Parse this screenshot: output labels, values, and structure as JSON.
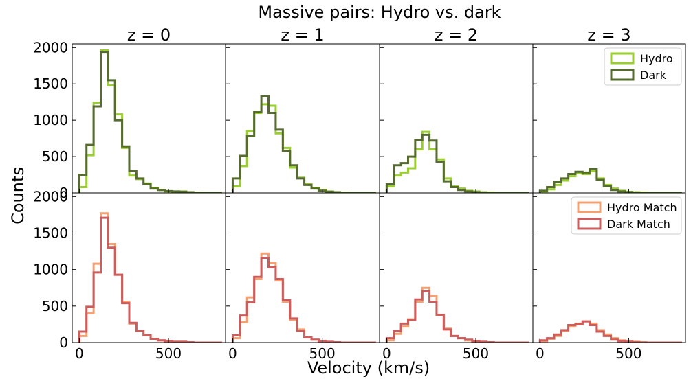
{
  "figure": {
    "suptitle": "Massive pairs: Hydro vs. dark",
    "xlabel": "Velocity (km/s)",
    "ylabel": "Counts"
  },
  "chart_data": {
    "type": "histogram-grid",
    "x_ticks": [
      0,
      500
    ],
    "y_ticks": [
      0,
      500,
      1000,
      1500,
      2000
    ],
    "xlim": [
      -40,
      820
    ],
    "ylim": [
      0,
      2050
    ],
    "bin_edges": [
      0,
      40,
      80,
      120,
      160,
      200,
      240,
      280,
      320,
      360,
      400,
      440,
      480,
      520,
      560,
      600,
      640,
      680,
      720,
      760,
      800
    ],
    "colors": {
      "Hydro": "#9acd32",
      "Dark": "#556b2f",
      "Hydro Match": "#f4a070",
      "Dark Match": "#cd5c5c"
    },
    "columns": [
      {
        "title": "z = 0"
      },
      {
        "title": "z = 1"
      },
      {
        "title": "z = 2"
      },
      {
        "title": "z = 3"
      }
    ],
    "rows": [
      {
        "legend": [
          "Hydro",
          "Dark"
        ],
        "panels": [
          {
            "series": [
              {
                "name": "Hydro",
                "values": [
                  80,
                  520,
                  1240,
                  1960,
                  1480,
                  1080,
                  620,
                  240,
                  190,
                  130,
                  70,
                  40,
                  20,
                  15,
                  20,
                  10,
                  5,
                  0,
                  0,
                  0
                ]
              },
              {
                "name": "Dark",
                "values": [
                  250,
                  660,
                  1190,
                  1940,
                  1550,
                  1000,
                  640,
                  300,
                  200,
                  120,
                  60,
                  40,
                  25,
                  20,
                  15,
                  10,
                  5,
                  0,
                  0,
                  0
                ]
              }
            ]
          },
          {
            "series": [
              {
                "name": "Hydro",
                "values": [
                  90,
                  370,
                  850,
                  1100,
                  1220,
                  1200,
                  820,
                  620,
                  350,
                  210,
                  120,
                  70,
                  40,
                  20,
                  10,
                  5,
                  0,
                  0,
                  0,
                  0
                ]
              },
              {
                "name": "Dark",
                "values": [
                  200,
                  510,
                  780,
                  1120,
                  1330,
                  1100,
                  870,
                  580,
                  380,
                  200,
                  110,
                  60,
                  30,
                  15,
                  10,
                  5,
                  0,
                  0,
                  0,
                  0
                ]
              }
            ]
          },
          {
            "series": [
              {
                "name": "Hydro",
                "values": [
                  90,
                  240,
                  280,
                  340,
                  600,
                  840,
                  600,
                  460,
                  200,
                  90,
                  60,
                  30,
                  20,
                  10,
                  5,
                  0,
                  0,
                  0,
                  0,
                  0
                ]
              },
              {
                "name": "Dark",
                "values": [
                  120,
                  380,
                  410,
                  500,
                  730,
                  800,
                  720,
                  430,
                  160,
                  80,
                  40,
                  20,
                  10,
                  5,
                  0,
                  0,
                  0,
                  0,
                  0,
                  0
                ]
              }
            ]
          },
          {
            "series": [
              {
                "name": "Hydro",
                "values": [
                  20,
                  50,
                  110,
                  170,
                  230,
                  270,
                  260,
                  300,
                  200,
                  110,
                  60,
                  30,
                  15,
                  10,
                  5,
                  0,
                  0,
                  0,
                  0,
                  0
                ]
              },
              {
                "name": "Dark",
                "values": [
                  30,
                  80,
                  150,
                  200,
                  260,
                  290,
                  280,
                  330,
                  180,
                  90,
                  40,
                  20,
                  10,
                  5,
                  0,
                  0,
                  0,
                  0,
                  0,
                  0
                ]
              }
            ]
          }
        ]
      },
      {
        "legend": [
          "Hydro Match",
          "Dark Match"
        ],
        "panels": [
          {
            "series": [
              {
                "name": "Hydro Match",
                "values": [
                  90,
                  400,
                  1080,
                  1770,
                  1350,
                  930,
                  560,
                  260,
                  160,
                  100,
                  50,
                  30,
                  20,
                  10,
                  10,
                  5,
                  0,
                  0,
                  0,
                  0
                ]
              },
              {
                "name": "Dark Match",
                "values": [
                  150,
                  490,
                  960,
                  1710,
                  1300,
                  930,
                  540,
                  270,
                  160,
                  100,
                  50,
                  30,
                  20,
                  10,
                  10,
                  5,
                  0,
                  0,
                  0,
                  0
                ]
              }
            ]
          },
          {
            "series": [
              {
                "name": "Hydro Match",
                "values": [
                  60,
                  280,
                  620,
                  870,
                  1220,
                  1090,
                  850,
                  560,
                  310,
                  180,
                  70,
                  40,
                  20,
                  10,
                  5,
                  0,
                  0,
                  0,
                  0,
                  0
                ]
              },
              {
                "name": "Dark Match",
                "values": [
                  100,
                  370,
                  550,
                  900,
                  1160,
                  1030,
                  870,
                  580,
                  330,
                  160,
                  70,
                  40,
                  20,
                  10,
                  5,
                  0,
                  0,
                  0,
                  0,
                  0
                ]
              }
            ]
          },
          {
            "series": [
              {
                "name": "Hydro Match",
                "values": [
                  30,
                  120,
                  220,
                  320,
                  560,
                  750,
                  640,
                  380,
                  190,
                  90,
                  60,
                  30,
                  20,
                  10,
                  5,
                  0,
                  0,
                  0,
                  0,
                  0
                ]
              },
              {
                "name": "Dark Match",
                "values": [
                  60,
                  160,
                  260,
                  310,
                  590,
                  700,
                  560,
                  380,
                  180,
                  90,
                  60,
                  40,
                  20,
                  10,
                  5,
                  0,
                  0,
                  0,
                  0,
                  0
                ]
              }
            ]
          },
          {
            "series": [
              {
                "name": "Hydro Match",
                "values": [
                  20,
                  50,
                  90,
                  160,
                  220,
                  260,
                  290,
                  260,
                  170,
                  110,
                  60,
                  30,
                  15,
                  10,
                  5,
                  0,
                  0,
                  0,
                  0,
                  0
                ]
              },
              {
                "name": "Dark Match",
                "values": [
                  30,
                  60,
                  110,
                  170,
                  240,
                  250,
                  290,
                  240,
                  150,
                  90,
                  40,
                  20,
                  10,
                  5,
                  0,
                  0,
                  0,
                  0,
                  0,
                  0
                ]
              }
            ]
          }
        ]
      }
    ]
  }
}
